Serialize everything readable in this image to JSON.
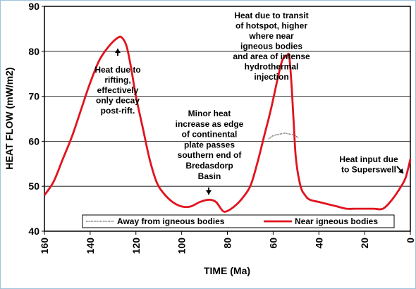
{
  "chart_data": {
    "type": "line",
    "xlabel": "TIME (Ma)",
    "ylabel": "HEAT FLOW (mW/m2)",
    "xlim": [
      160,
      0
    ],
    "ylim": [
      40,
      90
    ],
    "x_ticks": [
      "160",
      "140",
      "120",
      "100",
      "80",
      "60",
      "40",
      "20",
      "0"
    ],
    "y_ticks": [
      "40",
      "50",
      "60",
      "70",
      "80",
      "90"
    ],
    "grid": "horizontal",
    "legend_position": "bottom",
    "series": [
      {
        "name": "Away from igneous bodies",
        "color": "#6b6b6b",
        "style": "dotted",
        "x": [
          62,
          60,
          57,
          55,
          53,
          51,
          49
        ],
        "y": [
          60.5,
          61.2,
          61.6,
          61.8,
          61.6,
          61.4,
          60.8
        ]
      },
      {
        "name": "Near igneous bodies",
        "color": "#e0141e",
        "style": "solid",
        "x": [
          160,
          156,
          152,
          148,
          144,
          140,
          136,
          132,
          128,
          126,
          124,
          122,
          120,
          117,
          114,
          111,
          108,
          104,
          100,
          96,
          92,
          88,
          85,
          82,
          80,
          77,
          74,
          70,
          67,
          64,
          61,
          58,
          56,
          54,
          53,
          52,
          51,
          50,
          48,
          46,
          44,
          40,
          36,
          32,
          28,
          24,
          20,
          16,
          12,
          8,
          4,
          2,
          0
        ],
        "y": [
          48,
          51,
          56,
          61,
          67,
          73,
          78,
          81,
          83,
          83,
          81,
          76,
          70,
          63,
          56,
          51,
          48.5,
          46.5,
          45.5,
          45.5,
          46.5,
          47,
          46.5,
          44.5,
          44.5,
          45.5,
          47,
          50,
          55,
          61,
          67,
          74,
          78,
          79,
          79,
          73,
          64,
          56,
          50,
          48,
          47,
          46.5,
          46,
          45.5,
          45,
          45,
          45,
          45,
          45,
          47,
          50,
          52,
          56
        ]
      }
    ],
    "annotations": [
      {
        "lines": [
          "Heat due to",
          "rifting,",
          "effectively",
          "only decay",
          "post-rift."
        ]
      },
      {
        "lines": [
          "Minor heat",
          "increase as edge",
          "of continental",
          "plate passes",
          "southern end of",
          "Bredasdorp",
          "Basin"
        ]
      },
      {
        "lines": [
          "Heat due to transit",
          "of hotspot, higher",
          "where near",
          "igneous bodies",
          "and area of intense",
          "hydrothermal",
          "injection"
        ]
      },
      {
        "lines": [
          "Heat input due",
          "to Superswell"
        ]
      }
    ]
  }
}
